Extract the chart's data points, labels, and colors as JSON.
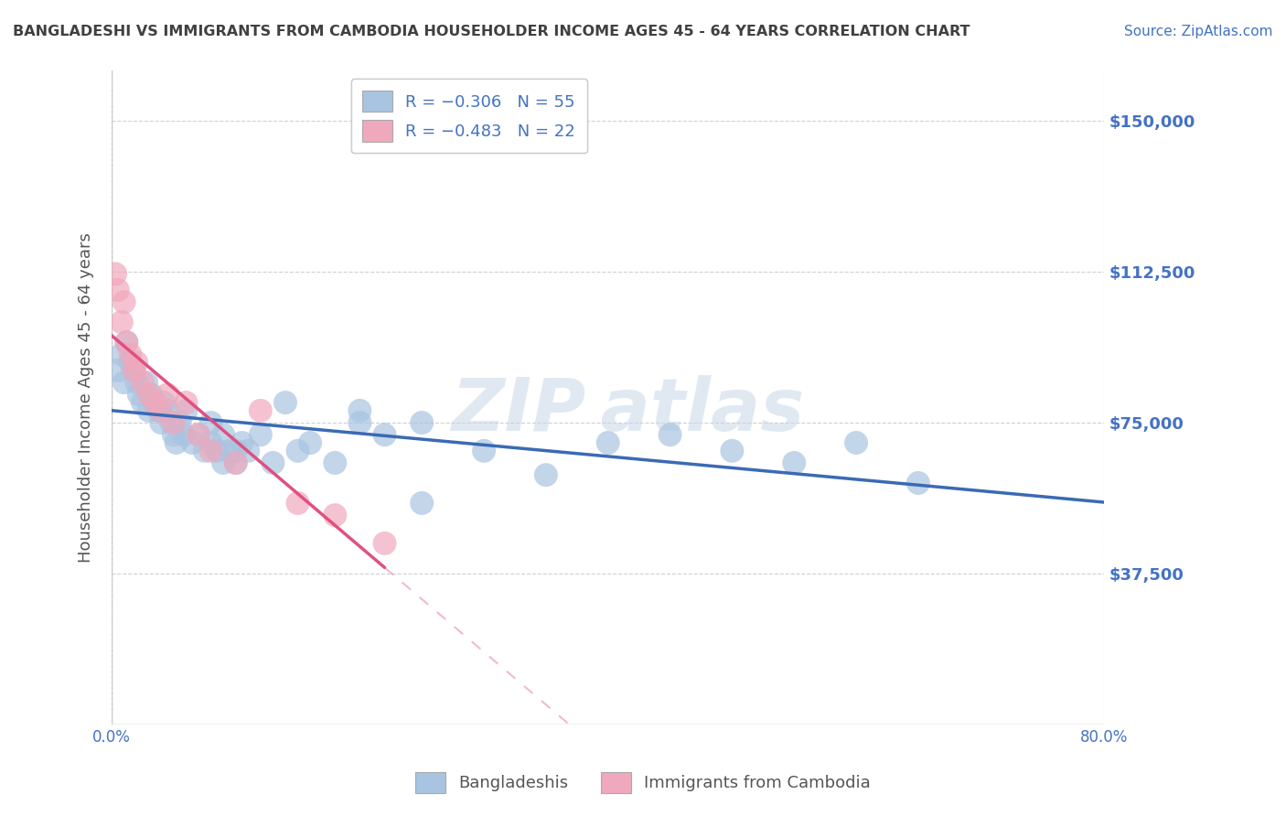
{
  "title": "BANGLADESHI VS IMMIGRANTS FROM CAMBODIA HOUSEHOLDER INCOME AGES 45 - 64 YEARS CORRELATION CHART",
  "source": "Source: ZipAtlas.com",
  "ylabel": "Householder Income Ages 45 - 64 years",
  "xlim": [
    0.0,
    80.0
  ],
  "ylim": [
    0,
    162500
  ],
  "yticks": [
    0,
    37500,
    75000,
    112500,
    150000
  ],
  "ytick_labels": [
    "",
    "$37,500",
    "$75,000",
    "$112,500",
    "$150,000"
  ],
  "legend_labels_bottom": [
    "Bangladeshis",
    "Immigrants from Cambodia"
  ],
  "r_blue": -0.306,
  "n_blue": 55,
  "r_pink": -0.483,
  "n_pink": 22,
  "blue_scatter_x": [
    0.5,
    0.8,
    1.0,
    1.2,
    1.5,
    1.8,
    2.0,
    2.2,
    2.5,
    2.8,
    3.0,
    3.2,
    3.5,
    3.8,
    4.0,
    4.2,
    4.5,
    4.8,
    5.0,
    5.2,
    5.5,
    5.8,
    6.0,
    6.5,
    7.0,
    7.5,
    8.0,
    8.5,
    9.0,
    9.5,
    10.0,
    10.5,
    11.0,
    12.0,
    13.0,
    14.0,
    15.0,
    16.0,
    18.0,
    20.0,
    22.0,
    25.0,
    30.0,
    35.0,
    40.0,
    45.0,
    50.0,
    55.0,
    60.0,
    65.0,
    8.0,
    9.0,
    10.0,
    20.0,
    25.0
  ],
  "blue_scatter_y": [
    88000,
    92000,
    85000,
    95000,
    90000,
    88000,
    85000,
    82000,
    80000,
    85000,
    78000,
    82000,
    80000,
    78000,
    75000,
    80000,
    78000,
    75000,
    72000,
    70000,
    75000,
    72000,
    78000,
    70000,
    72000,
    68000,
    70000,
    68000,
    65000,
    68000,
    65000,
    70000,
    68000,
    72000,
    65000,
    80000,
    68000,
    70000,
    65000,
    75000,
    72000,
    75000,
    68000,
    62000,
    70000,
    72000,
    68000,
    65000,
    70000,
    60000,
    75000,
    72000,
    68000,
    78000,
    55000
  ],
  "pink_scatter_x": [
    0.3,
    0.5,
    0.8,
    1.0,
    1.2,
    1.5,
    1.8,
    2.0,
    2.5,
    3.0,
    3.5,
    4.0,
    4.5,
    5.0,
    6.0,
    7.0,
    8.0,
    10.0,
    12.0,
    15.0,
    18.0,
    22.0
  ],
  "pink_scatter_y": [
    112000,
    108000,
    100000,
    105000,
    95000,
    92000,
    88000,
    90000,
    85000,
    82000,
    80000,
    78000,
    82000,
    75000,
    80000,
    72000,
    68000,
    65000,
    78000,
    55000,
    52000,
    45000
  ],
  "watermark_text": "ZIP atlas",
  "background_color": "#ffffff",
  "grid_color": "#d0d0d0",
  "blue_line_color": "#3a6ab5",
  "pink_line_color": "#e05080",
  "blue_scatter_color": "#a8c4e0",
  "pink_scatter_color": "#f0a8bc",
  "title_color": "#404040",
  "source_color": "#4472c4",
  "tick_label_color": "#4472c4",
  "legend_r_color": "#404040",
  "legend_n_color": "#4472c4"
}
